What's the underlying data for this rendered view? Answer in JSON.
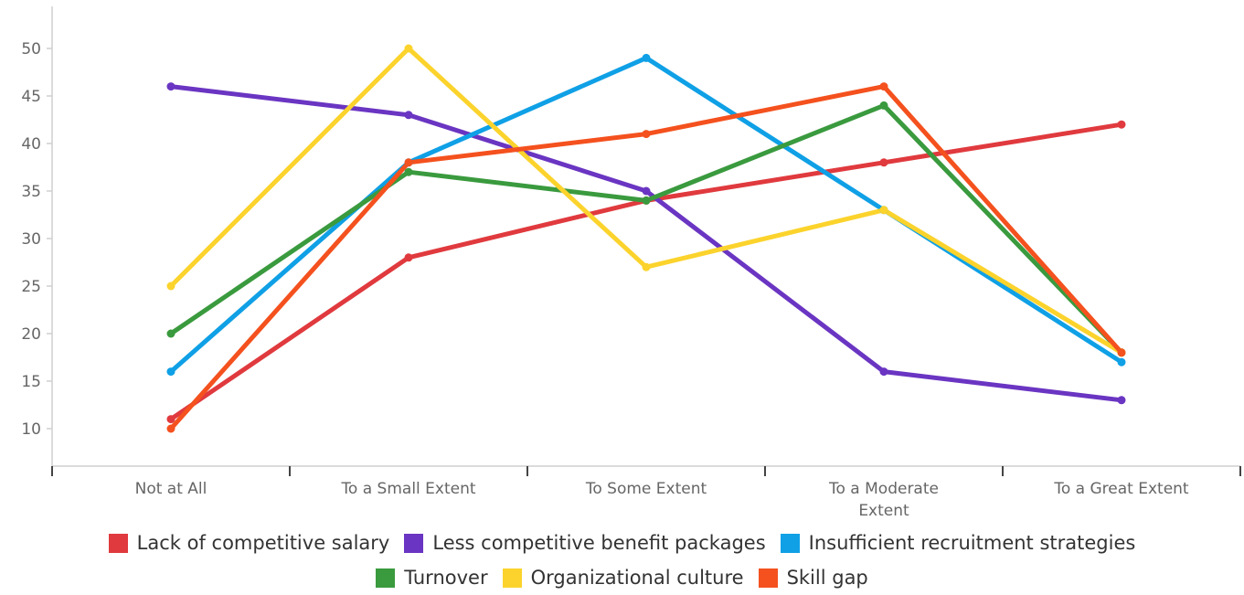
{
  "chart_data": {
    "type": "line",
    "categories": [
      "Not at All",
      "To a Small Extent",
      "To Some Extent",
      "To a Moderate Extent",
      "To a Great Extent"
    ],
    "category_lines": [
      [
        "Not at All"
      ],
      [
        "To a Small Extent"
      ],
      [
        "To Some Extent"
      ],
      [
        "To a Moderate",
        "Extent"
      ],
      [
        "To a Great Extent"
      ]
    ],
    "yticks": [
      10,
      15,
      20,
      25,
      30,
      35,
      40,
      45,
      50
    ],
    "ylim": [
      6,
      54
    ],
    "title": "",
    "xlabel": "",
    "ylabel": "",
    "legend_position": "bottom",
    "grid": false,
    "series": [
      {
        "name": "Lack of competitive salary",
        "color": "#e03a3e",
        "values": [
          11,
          28,
          34,
          38,
          42
        ]
      },
      {
        "name": "Less competitive benefit packages",
        "color": "#6a35c2",
        "values": [
          46,
          43,
          35,
          16,
          13
        ]
      },
      {
        "name": "Insufficient recruitment strategies",
        "color": "#0fa0e6",
        "values": [
          16,
          38,
          49,
          33,
          17
        ]
      },
      {
        "name": "Turnover",
        "color": "#3a9a3e",
        "values": [
          20,
          37,
          34,
          44,
          18
        ]
      },
      {
        "name": "Organizational culture",
        "color": "#fbd32c",
        "values": [
          25,
          50,
          27,
          33,
          18
        ]
      },
      {
        "name": "Skill gap",
        "color": "#f4511e",
        "values": [
          10,
          38,
          41,
          46,
          18
        ]
      }
    ]
  }
}
